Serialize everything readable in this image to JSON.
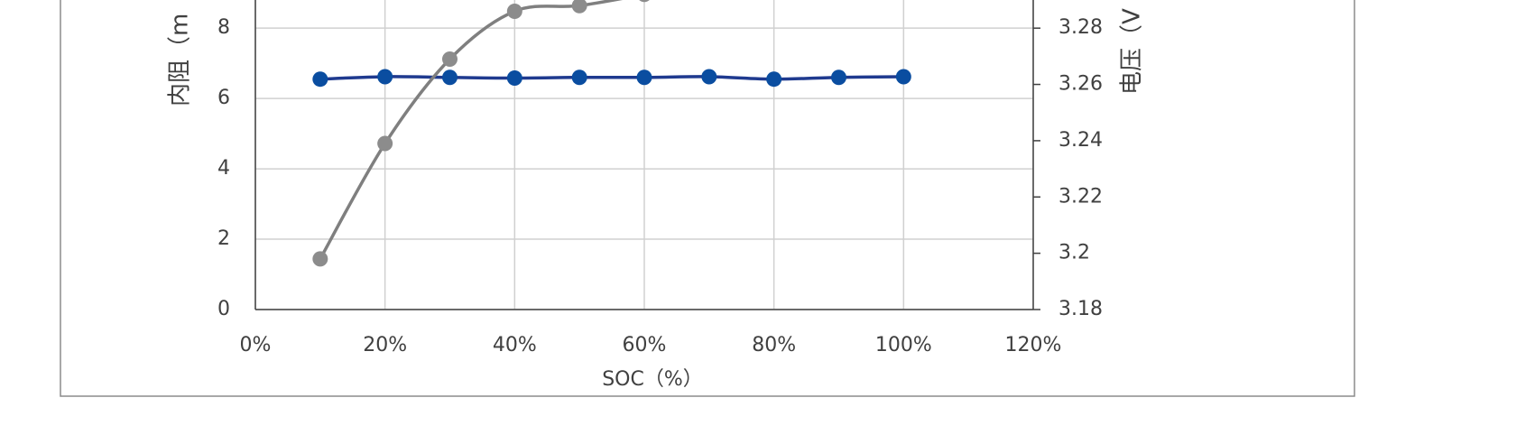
{
  "chart_data": {
    "type": "line",
    "x_label": "SOC（%）",
    "y_label": "内阻（m",
    "y2_label": "电压（V",
    "x": [
      0.1,
      0.2,
      0.3,
      0.4,
      0.5,
      0.6,
      0.7,
      0.8,
      0.9,
      1.0
    ],
    "series": [
      {
        "color": "#1f3a8f",
        "marker_color": "#0a4da0",
        "axis": "y",
        "values": [
          6.55,
          6.62,
          6.6,
          6.58,
          6.6,
          6.6,
          6.62,
          6.55,
          6.6,
          6.62
        ]
      },
      {
        "color": "#7f7f7f",
        "marker_color": "#8c8c8c",
        "axis": "y2",
        "values": [
          3.198,
          3.239,
          3.269,
          3.286,
          3.288,
          3.292,
          null,
          null,
          null,
          null
        ]
      }
    ],
    "xlim": [
      0,
      1.2
    ],
    "xticks": [
      {
        "value": 0,
        "label": "0%"
      },
      {
        "value": 0.2,
        "label": "20%"
      },
      {
        "value": 0.4,
        "label": "40%"
      },
      {
        "value": 0.6,
        "label": "60%"
      },
      {
        "value": 0.8,
        "label": "80%"
      },
      {
        "value": 1.0,
        "label": "100%"
      },
      {
        "value": 1.2,
        "label": "120%"
      }
    ],
    "ylim": [
      0,
      8.8
    ],
    "yticks": [
      0,
      2,
      4,
      6,
      8
    ],
    "y2lim": [
      3.18,
      3.29
    ],
    "y2ticks": [
      3.18,
      3.2,
      3.22,
      3.24,
      3.26,
      3.28
    ],
    "grid": true
  }
}
